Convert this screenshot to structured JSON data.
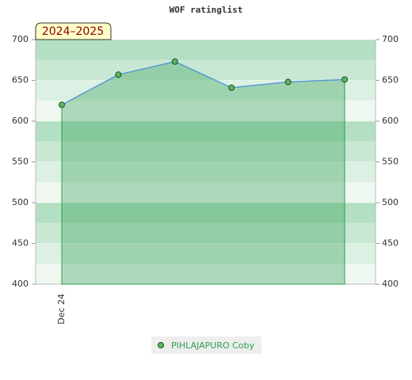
{
  "chart_data": {
    "type": "line",
    "title": "WOF ratinglist",
    "annotation": "2024–2025",
    "categories": [
      "Dec 24",
      null,
      null,
      null,
      null,
      null
    ],
    "series": [
      {
        "name": "PIHLAJAPURO Coby",
        "color": "#5b9bd5",
        "fill": "#2e9e4f",
        "marker_color": "#5cb85c",
        "values": [
          620,
          657,
          673,
          641,
          648,
          651
        ]
      }
    ],
    "ylim": [
      400,
      700
    ],
    "yticks": [
      400,
      450,
      500,
      550,
      600,
      650,
      700
    ],
    "y2lim": [
      400,
      700
    ],
    "y2ticks": [
      400,
      450,
      500,
      550,
      600,
      650,
      700
    ],
    "grid": true,
    "legend": "bottom"
  }
}
